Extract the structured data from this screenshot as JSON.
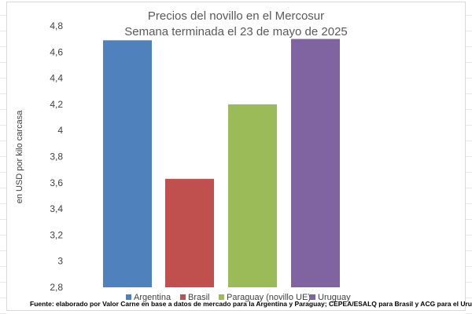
{
  "chart_data": {
    "type": "bar",
    "title": [
      "Precios del novillo en el Mercosur",
      "Semana terminada el 23 de mayo de 2025"
    ],
    "ylabel": "en USD por kilo carcasa",
    "xlabel": "",
    "ylim": [
      2.8,
      4.8
    ],
    "yticks": [
      "2,8",
      "3",
      "3,2",
      "3,4",
      "3,6",
      "3,8",
      "4",
      "4,2",
      "4,4",
      "4,6",
      "4,8"
    ],
    "ytick_values": [
      2.8,
      3.0,
      3.2,
      3.4,
      3.6,
      3.8,
      4.0,
      4.2,
      4.4,
      4.6,
      4.8
    ],
    "grid": false,
    "legend_position": "bottom",
    "series": [
      {
        "name": "Argentina",
        "value": 4.69,
        "color": "#4f81bd"
      },
      {
        "name": "Brasil",
        "value": 3.63,
        "color": "#c0504d"
      },
      {
        "name": "Paraguay (novillo UE)",
        "value": 4.2,
        "color": "#9bbb59"
      },
      {
        "name": "Uruguay",
        "value": 4.7,
        "color": "#8064a2"
      }
    ],
    "source": "Fuente: elaborado por Valor Carne en base a datos de mercado para la Argentina y Paraguay; CEPEA/ESALQ para Brasil y ACG para el Uruguay"
  }
}
